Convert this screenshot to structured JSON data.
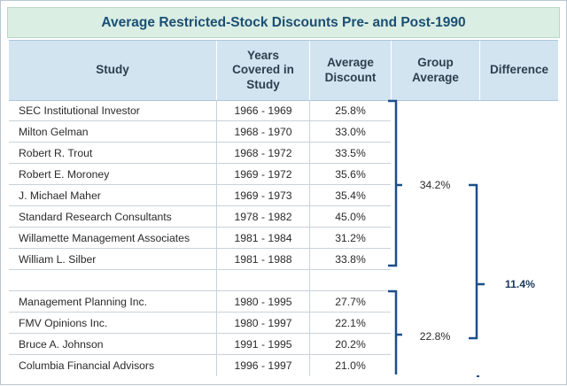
{
  "title": "Average Restricted-Stock Discounts Pre- and Post-1990",
  "columns": {
    "study": "Study",
    "years": [
      "Years",
      "Covered in",
      "Study"
    ],
    "discount": [
      "Average",
      "Discount"
    ],
    "group_average": [
      "Group",
      "Average"
    ],
    "difference": "Difference"
  },
  "pre_1990": {
    "rows": [
      {
        "study": "SEC Institutional Investor",
        "years": "1966 - 1969",
        "discount": "25.8%"
      },
      {
        "study": "Milton Gelman",
        "years": "1968 - 1970",
        "discount": "33.0%"
      },
      {
        "study": "Robert R. Trout",
        "years": "1968 - 1972",
        "discount": "33.5%"
      },
      {
        "study": "Robert E. Moroney",
        "years": "1969 - 1972",
        "discount": "35.6%"
      },
      {
        "study": "J. Michael Maher",
        "years": "1969 - 1973",
        "discount": "35.4%"
      },
      {
        "study": "Standard Research Consultants",
        "years": "1978 - 1982",
        "discount": "45.0%"
      },
      {
        "study": "Willamette Management Associates",
        "years": "1981 - 1984",
        "discount": "31.2%"
      },
      {
        "study": "William L. Silber",
        "years": "1981 - 1988",
        "discount": "33.8%"
      }
    ],
    "group_average": "34.2%"
  },
  "post_1990": {
    "rows": [
      {
        "study": "Management Planning Inc.",
        "years": "1980 - 1995",
        "discount": "27.7%"
      },
      {
        "study": "FMV Opinions Inc.",
        "years": "1980 - 1997",
        "discount": "22.1%"
      },
      {
        "study": "Bruce A. Johnson",
        "years": "1991 - 1995",
        "discount": "20.2%"
      },
      {
        "study": "Columbia Financial Advisors",
        "years": "1996 - 1997",
        "discount": "21.0%"
      }
    ],
    "group_average": "22.8%"
  },
  "difference": "11.4%",
  "colors": {
    "title_bg": "#dbeee4",
    "title_text": "#1b4f73",
    "header_bg": "#d3e4f1",
    "bracket": "#1b4f8a"
  }
}
